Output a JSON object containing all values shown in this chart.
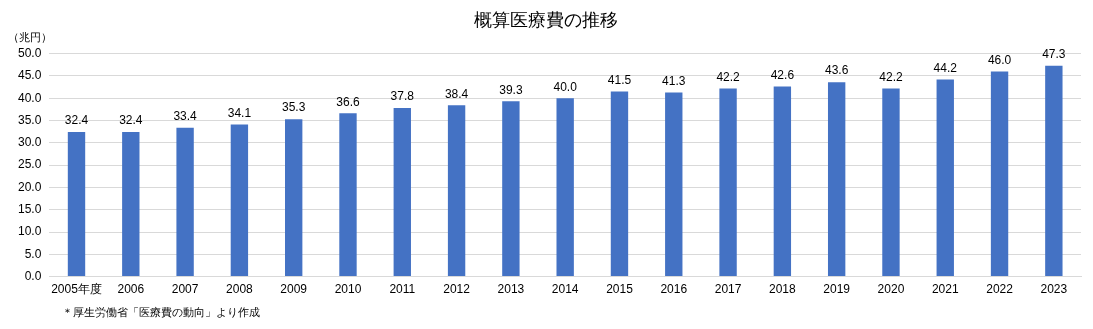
{
  "chart_data": {
    "type": "bar",
    "title": "概算医療費の推移",
    "ylabel": "（兆円）",
    "categories": [
      "2005年度",
      "2006",
      "2007",
      "2008",
      "2009",
      "2010",
      "2011",
      "2012",
      "2013",
      "2014",
      "2015",
      "2016",
      "2017",
      "2018",
      "2019",
      "2020",
      "2021",
      "2022",
      "2023"
    ],
    "values": [
      32.4,
      32.4,
      33.4,
      34.1,
      35.3,
      36.6,
      37.8,
      38.4,
      39.3,
      40.0,
      41.5,
      41.3,
      42.2,
      42.6,
      43.6,
      42.2,
      44.2,
      46.0,
      47.3
    ],
    "value_labels": [
      "32.4",
      "32.4",
      "33.4",
      "34.1",
      "35.3",
      "36.6",
      "37.8",
      "38.4",
      "39.3",
      "40.0",
      "41.5",
      "41.3",
      "42.2",
      "42.6",
      "43.6",
      "42.2",
      "44.2",
      "46.0",
      "47.3"
    ],
    "color": "#4472c4",
    "ylim": [
      0,
      50
    ],
    "yticks": [
      {
        "value": 0,
        "label": "0.0"
      },
      {
        "value": 5,
        "label": "5.0"
      },
      {
        "value": 10,
        "label": "10.0"
      },
      {
        "value": 15,
        "label": "15.0"
      },
      {
        "value": 20,
        "label": "20.0"
      },
      {
        "value": 25,
        "label": "25.0"
      },
      {
        "value": 30,
        "label": "30.0"
      },
      {
        "value": 35,
        "label": "35.0"
      },
      {
        "value": 40,
        "label": "40.0"
      },
      {
        "value": 45,
        "label": "45.0"
      },
      {
        "value": 50,
        "label": "50.0"
      }
    ],
    "grid": "y",
    "legend": false,
    "annotations": [
      "＊厚生労働省「医療費の動向」より作成"
    ]
  }
}
